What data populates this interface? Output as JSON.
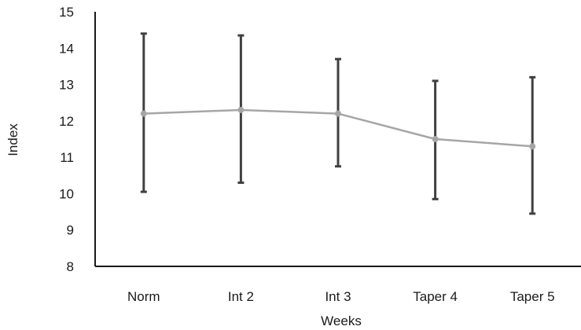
{
  "chart_data": {
    "type": "line",
    "title": "",
    "xlabel": "Weeks",
    "ylabel": "Index",
    "categories": [
      "Norm",
      "Int 2",
      "Int 3",
      "Taper 4",
      "Taper 5"
    ],
    "ylim": [
      8,
      15
    ],
    "yticks": [
      8,
      9,
      10,
      11,
      12,
      13,
      14,
      15
    ],
    "grid": false,
    "legend": "none",
    "series": [
      {
        "values": [
          12.2,
          12.3,
          12.2,
          11.5,
          11.3
        ],
        "error_low": [
          10.05,
          10.3,
          10.75,
          9.85,
          9.45
        ],
        "error_high": [
          14.4,
          14.35,
          13.7,
          13.1,
          13.2
        ],
        "color": "#a6a6a6",
        "error_color": "#404040"
      }
    ]
  }
}
